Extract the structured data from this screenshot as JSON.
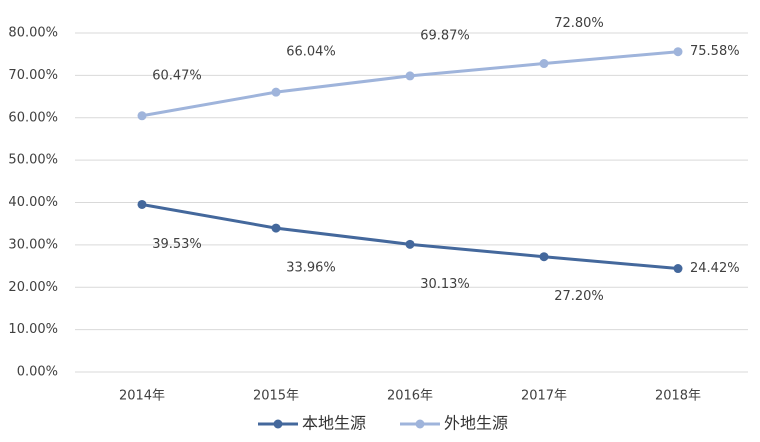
{
  "chart_data": {
    "type": "line",
    "categories": [
      "2014年",
      "2015年",
      "2016年",
      "2017年",
      "2018年"
    ],
    "series": [
      {
        "name": "本地生源",
        "color": "#44689c",
        "values": [
          39.53,
          33.96,
          30.13,
          27.2,
          24.42
        ],
        "value_labels": [
          "39.53%",
          "33.96%",
          "30.13%",
          "27.20%",
          "24.42%"
        ]
      },
      {
        "name": "外地生源",
        "color": "#9fb4db",
        "values": [
          60.47,
          66.04,
          69.87,
          72.8,
          75.58
        ],
        "value_labels": [
          "60.47%",
          "66.04%",
          "69.87%",
          "72.80%",
          "75.58%"
        ]
      }
    ],
    "ylim": [
      0,
      80
    ],
    "yticks": [
      {
        "value": 0,
        "label": "0.00%"
      },
      {
        "value": 10,
        "label": "10.00%"
      },
      {
        "value": 20,
        "label": "20.00%"
      },
      {
        "value": 30,
        "label": "30.00%"
      },
      {
        "value": 40,
        "label": "40.00%"
      },
      {
        "value": 50,
        "label": "50.00%"
      },
      {
        "value": 60,
        "label": "60.00%"
      },
      {
        "value": 70,
        "label": "70.00%"
      },
      {
        "value": 80,
        "label": "80.00%"
      }
    ],
    "grid": true,
    "legend": "bottom"
  }
}
